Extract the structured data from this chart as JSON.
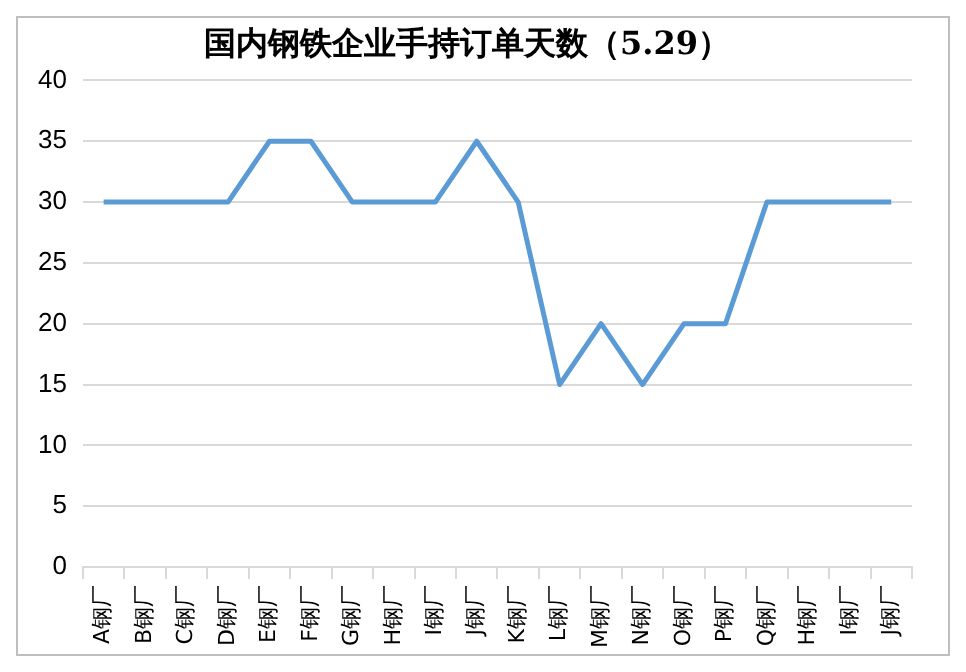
{
  "chart_data": {
    "type": "line",
    "title": "国内钢铁企业手持订单天数（5.29）",
    "categories": [
      "A钢厂",
      "B钢厂",
      "C钢厂",
      "D钢厂",
      "E钢厂",
      "F钢厂",
      "G钢厂",
      "H钢厂",
      "I钢厂",
      "J钢厂",
      "K钢厂",
      "L钢厂",
      "M钢厂",
      "N钢厂",
      "O钢厂",
      "P钢厂",
      "Q钢厂",
      "H钢厂",
      "I钢厂",
      "J钢厂"
    ],
    "series": [
      {
        "color": "#5b9bd5",
        "values": [
          30,
          30,
          30,
          30,
          35,
          35,
          30,
          30,
          30,
          35,
          30,
          15,
          20,
          15,
          20,
          20,
          30,
          30,
          30,
          30
        ]
      }
    ],
    "ylim": [
      0,
      40
    ],
    "yticks": [
      0,
      5,
      10,
      15,
      20,
      25,
      30,
      35,
      40
    ],
    "grid": "y",
    "legend": false,
    "marker": "none",
    "line_style": "solid"
  }
}
